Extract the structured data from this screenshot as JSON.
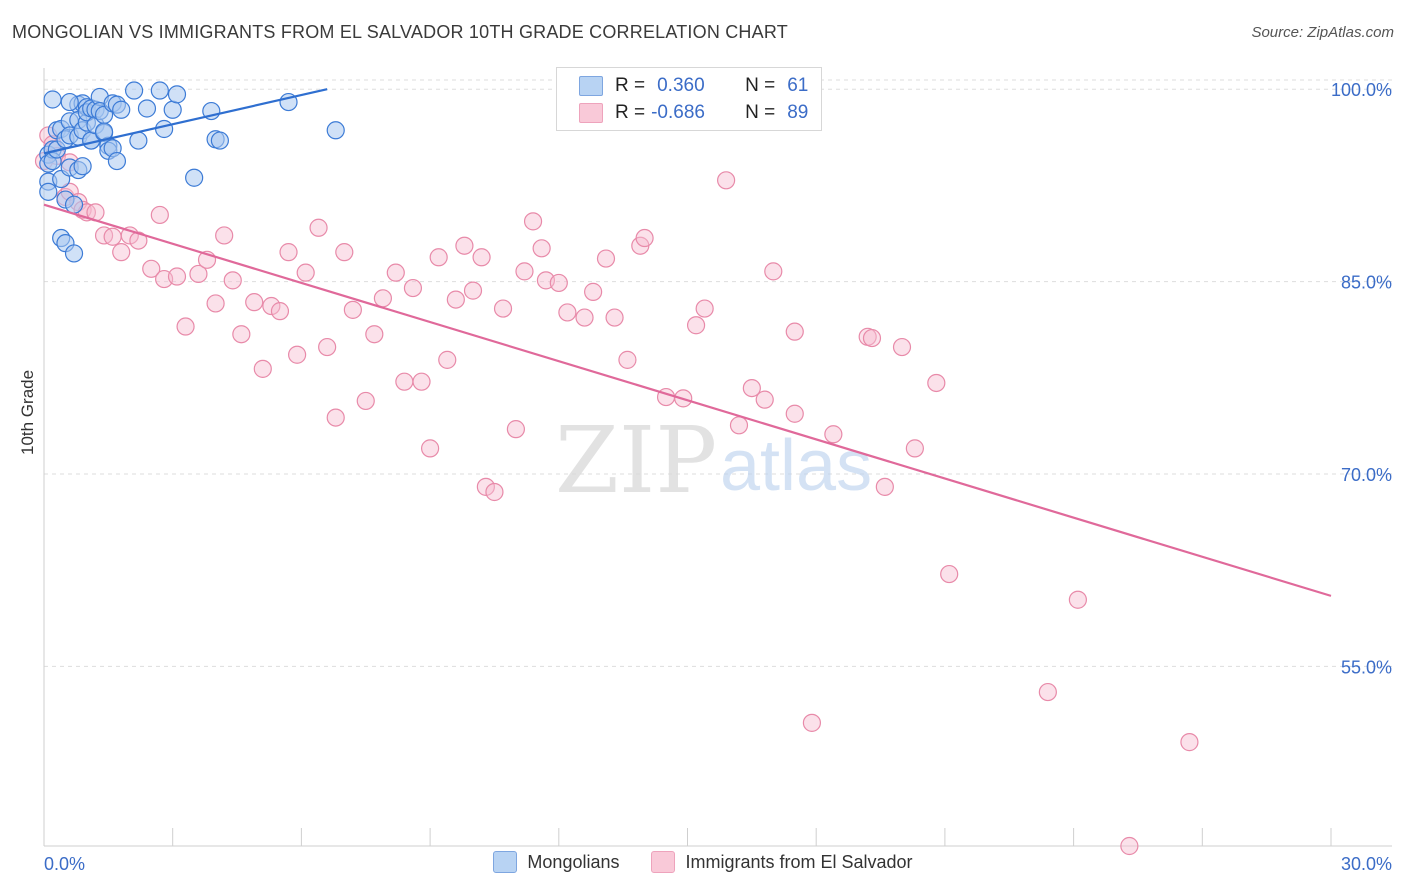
{
  "header": {
    "title": "MONGOLIAN VS IMMIGRANTS FROM EL SALVADOR 10TH GRADE CORRELATION CHART",
    "source": "Source: ZipAtlas.com"
  },
  "watermark": {
    "zip": "ZIP",
    "atlas": "atlas"
  },
  "colors": {
    "blue_fill": "#a9c8f0",
    "blue_stroke": "#3c7bd6",
    "blue_line": "#2f6fd0",
    "pink_fill": "#f7bcd0",
    "pink_stroke": "#e88aa9",
    "pink_line": "#e0699a",
    "tick_label": "#3b6cc7",
    "grid": "#dddddd"
  },
  "stats": [
    {
      "r_label": "R =",
      "r_value": "0.360",
      "n_label": "N =",
      "n_value": "61"
    },
    {
      "r_label": "R =",
      "r_value": "-0.686",
      "n_label": "N =",
      "n_value": "89"
    }
  ],
  "chart_data": {
    "type": "scatter",
    "title": "MONGOLIAN VS IMMIGRANTS FROM EL SALVADOR 10TH GRADE CORRELATION CHART",
    "xlabel": "",
    "ylabel": "10th Grade",
    "xlim": [
      0,
      30
    ],
    "ylim": [
      41,
      101.5
    ],
    "x_tick_labels": [
      "0.0%",
      "30.0%"
    ],
    "y_ticks": [
      55,
      70,
      85,
      100
    ],
    "y_tick_labels": [
      "55.0%",
      "70.0%",
      "85.0%",
      "100.0%"
    ],
    "legend": [
      "Mongolians",
      "Immigrants from El Salvador"
    ],
    "series": [
      {
        "name": "Mongolians",
        "trend": {
          "x": [
            0.0,
            6.6
          ],
          "y": [
            95.0,
            100.0
          ]
        },
        "points": [
          [
            0.1,
            94.9
          ],
          [
            0.1,
            94.2
          ],
          [
            0.1,
            92.8
          ],
          [
            0.1,
            92.0
          ],
          [
            0.2,
            95.3
          ],
          [
            0.2,
            94.4
          ],
          [
            0.3,
            96.8
          ],
          [
            0.3,
            95.3
          ],
          [
            0.4,
            96.9
          ],
          [
            0.4,
            93.0
          ],
          [
            0.4,
            88.4
          ],
          [
            0.5,
            96.1
          ],
          [
            0.5,
            91.4
          ],
          [
            0.5,
            88.0
          ],
          [
            0.6,
            97.5
          ],
          [
            0.6,
            96.4
          ],
          [
            0.6,
            93.9
          ],
          [
            0.7,
            87.2
          ],
          [
            0.7,
            91.0
          ],
          [
            0.8,
            93.7
          ],
          [
            0.8,
            96.3
          ],
          [
            0.8,
            98.8
          ],
          [
            0.8,
            97.6
          ],
          [
            0.9,
            96.8
          ],
          [
            0.9,
            98.9
          ],
          [
            1.0,
            97.4
          ],
          [
            1.0,
            98.6
          ],
          [
            1.0,
            98.2
          ],
          [
            1.1,
            98.5
          ],
          [
            1.1,
            96.0
          ],
          [
            1.1,
            96.0
          ],
          [
            1.2,
            98.4
          ],
          [
            1.2,
            97.2
          ],
          [
            1.3,
            99.4
          ],
          [
            1.3,
            98.3
          ],
          [
            1.4,
            98.0
          ],
          [
            1.4,
            96.6
          ],
          [
            1.5,
            95.6
          ],
          [
            1.5,
            95.2
          ],
          [
            1.6,
            98.9
          ],
          [
            1.6,
            95.4
          ],
          [
            1.7,
            98.8
          ],
          [
            1.7,
            94.4
          ],
          [
            1.8,
            98.4
          ],
          [
            2.2,
            96.0
          ],
          [
            2.1,
            99.9
          ],
          [
            2.4,
            98.5
          ],
          [
            2.7,
            99.9
          ],
          [
            2.8,
            96.9
          ],
          [
            3.0,
            98.4
          ],
          [
            3.1,
            99.6
          ],
          [
            3.5,
            93.1
          ],
          [
            3.9,
            98.3
          ],
          [
            4.0,
            96.1
          ],
          [
            4.1,
            96.0
          ],
          [
            5.7,
            99.0
          ],
          [
            6.8,
            96.8
          ],
          [
            0.2,
            99.2
          ],
          [
            0.6,
            99.0
          ],
          [
            0.9,
            94.0
          ],
          [
            1.4,
            96.7
          ]
        ]
      },
      {
        "name": "Immigrants from El Salvador",
        "trend": {
          "x": [
            0.0,
            30.0
          ],
          "y": [
            91.0,
            60.5
          ]
        },
        "points": [
          [
            0.0,
            94.4
          ],
          [
            0.1,
            96.4
          ],
          [
            0.2,
            95.7
          ],
          [
            0.3,
            94.8
          ],
          [
            0.5,
            91.6
          ],
          [
            0.6,
            94.3
          ],
          [
            0.6,
            92.0
          ],
          [
            0.8,
            91.2
          ],
          [
            0.9,
            90.6
          ],
          [
            1.0,
            90.4
          ],
          [
            1.2,
            90.4
          ],
          [
            1.4,
            88.6
          ],
          [
            1.6,
            88.5
          ],
          [
            1.8,
            87.3
          ],
          [
            2.0,
            88.6
          ],
          [
            2.2,
            88.2
          ],
          [
            2.5,
            86.0
          ],
          [
            2.7,
            90.2
          ],
          [
            2.8,
            85.2
          ],
          [
            3.1,
            85.4
          ],
          [
            3.3,
            81.5
          ],
          [
            3.6,
            85.6
          ],
          [
            3.8,
            86.7
          ],
          [
            4.0,
            83.3
          ],
          [
            4.2,
            88.6
          ],
          [
            4.4,
            85.1
          ],
          [
            4.6,
            80.9
          ],
          [
            4.9,
            83.4
          ],
          [
            5.1,
            78.2
          ],
          [
            5.3,
            83.1
          ],
          [
            5.5,
            82.7
          ],
          [
            5.7,
            87.3
          ],
          [
            5.9,
            79.3
          ],
          [
            6.1,
            85.7
          ],
          [
            6.4,
            89.2
          ],
          [
            6.6,
            79.9
          ],
          [
            6.8,
            74.4
          ],
          [
            7.0,
            87.3
          ],
          [
            7.2,
            82.8
          ],
          [
            7.5,
            75.7
          ],
          [
            7.7,
            80.9
          ],
          [
            7.9,
            83.7
          ],
          [
            8.2,
            85.7
          ],
          [
            8.4,
            77.2
          ],
          [
            8.6,
            84.5
          ],
          [
            8.8,
            77.2
          ],
          [
            9.0,
            72.0
          ],
          [
            9.2,
            86.9
          ],
          [
            9.4,
            78.9
          ],
          [
            9.6,
            83.6
          ],
          [
            9.8,
            87.8
          ],
          [
            10.0,
            84.3
          ],
          [
            10.2,
            86.9
          ],
          [
            10.3,
            69.0
          ],
          [
            10.5,
            68.6
          ],
          [
            10.7,
            82.9
          ],
          [
            11.0,
            73.5
          ],
          [
            11.2,
            85.8
          ],
          [
            11.4,
            89.7
          ],
          [
            11.6,
            87.6
          ],
          [
            11.7,
            85.1
          ],
          [
            12.0,
            84.9
          ],
          [
            12.2,
            82.6
          ],
          [
            12.6,
            82.2
          ],
          [
            12.8,
            84.2
          ],
          [
            13.1,
            86.8
          ],
          [
            13.3,
            82.2
          ],
          [
            13.6,
            78.9
          ],
          [
            13.9,
            87.8
          ],
          [
            14.0,
            88.4
          ],
          [
            14.5,
            76.0
          ],
          [
            14.9,
            75.9
          ],
          [
            15.2,
            81.6
          ],
          [
            15.4,
            82.9
          ],
          [
            15.9,
            92.9
          ],
          [
            16.2,
            73.8
          ],
          [
            16.5,
            76.7
          ],
          [
            16.8,
            75.8
          ],
          [
            17.0,
            85.8
          ],
          [
            17.5,
            74.7
          ],
          [
            17.5,
            81.1
          ],
          [
            18.4,
            73.1
          ],
          [
            19.2,
            80.7
          ],
          [
            19.3,
            80.6
          ],
          [
            19.6,
            69.0
          ],
          [
            20.0,
            79.9
          ],
          [
            20.3,
            72.0
          ],
          [
            20.8,
            77.1
          ],
          [
            21.1,
            62.2
          ]
        ],
        "extra_points": [
          [
            24.1,
            60.2
          ],
          [
            23.4,
            53.0
          ],
          [
            17.9,
            50.6
          ],
          [
            26.7,
            49.1
          ],
          [
            25.3,
            41.0
          ]
        ]
      }
    ]
  }
}
